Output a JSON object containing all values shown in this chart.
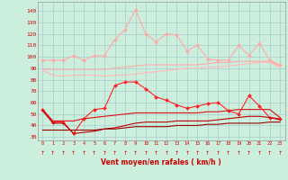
{
  "x": [
    0,
    1,
    2,
    3,
    4,
    5,
    6,
    7,
    8,
    9,
    10,
    11,
    12,
    13,
    14,
    15,
    16,
    17,
    18,
    19,
    20,
    21,
    22,
    23
  ],
  "series": [
    {
      "name": "rafales_light_markers",
      "color": "#ffaaaa",
      "lw": 0.8,
      "marker": "D",
      "markersize": 2.0,
      "values": [
        97,
        97,
        97,
        101,
        97,
        101,
        101,
        115,
        124,
        141,
        120,
        113,
        120,
        119,
        105,
        110,
        98,
        97,
        97,
        110,
        101,
        112,
        97,
        93
      ]
    },
    {
      "name": "rafales_light_smooth",
      "color": "#ffaaaa",
      "lw": 0.8,
      "marker": null,
      "markersize": 0,
      "values": [
        89,
        89,
        89,
        89,
        89,
        89,
        89,
        90,
        91,
        92,
        93,
        93,
        93,
        93,
        93,
        93,
        94,
        95,
        95,
        96,
        96,
        96,
        96,
        92
      ]
    },
    {
      "name": "vent_light_smooth",
      "color": "#ffbbbb",
      "lw": 0.8,
      "marker": null,
      "markersize": 0,
      "values": [
        88,
        84,
        83,
        84,
        84,
        84,
        83,
        84,
        84,
        85,
        86,
        87,
        88,
        89,
        90,
        90,
        91,
        91,
        92,
        93,
        94,
        95,
        95,
        91
      ]
    },
    {
      "name": "rafales_red_markers",
      "color": "#ff2222",
      "lw": 0.8,
      "marker": "D",
      "markersize": 2.0,
      "values": [
        54,
        43,
        43,
        33,
        46,
        54,
        55,
        75,
        78,
        78,
        72,
        65,
        62,
        58,
        55,
        57,
        59,
        60,
        53,
        50,
        66,
        57,
        47,
        46
      ]
    },
    {
      "name": "vent_mid_line",
      "color": "#dd1111",
      "lw": 0.8,
      "marker": null,
      "markersize": 0,
      "values": [
        54,
        44,
        44,
        44,
        46,
        47,
        48,
        49,
        50,
        51,
        51,
        51,
        51,
        51,
        51,
        51,
        52,
        52,
        53,
        54,
        54,
        54,
        54,
        47
      ]
    },
    {
      "name": "vent_dark_line",
      "color": "#bb0000",
      "lw": 0.8,
      "marker": null,
      "markersize": 0,
      "values": [
        53,
        42,
        42,
        33,
        34,
        35,
        37,
        38,
        40,
        42,
        43,
        43,
        43,
        44,
        44,
        44,
        44,
        45,
        46,
        47,
        48,
        48,
        47,
        45
      ]
    },
    {
      "name": "vent_darkest_line",
      "color": "#990000",
      "lw": 0.8,
      "marker": null,
      "markersize": 0,
      "values": [
        36,
        36,
        36,
        36,
        36,
        36,
        37,
        37,
        38,
        39,
        39,
        39,
        39,
        40,
        40,
        40,
        41,
        41,
        42,
        42,
        42,
        42,
        43,
        43
      ]
    }
  ],
  "xlabel": "Vent moyen/en rafales ( km/h )",
  "xlabel_color": "#cc0000",
  "bg_color": "#cceedd",
  "grid_color": "#aacccc",
  "yticks": [
    30,
    40,
    50,
    60,
    70,
    80,
    90,
    100,
    110,
    120,
    130,
    140
  ],
  "ylim": [
    27,
    148
  ],
  "xlim": [
    -0.5,
    23.5
  ],
  "tick_color": "#cc0000",
  "label_color": "#cc0000",
  "spine_color": "#999999"
}
